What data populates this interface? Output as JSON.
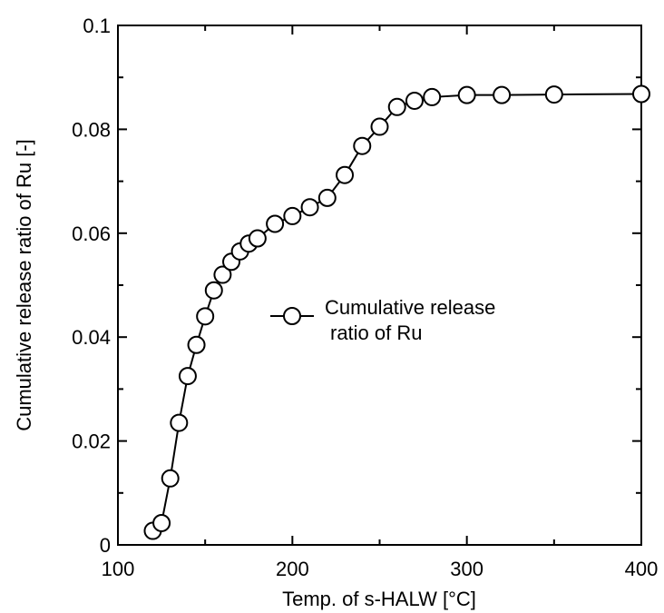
{
  "chart_data": {
    "type": "line",
    "title": "",
    "xlabel": "Temp. of s-HALW [°C]",
    "ylabel": "Cumulative release ratio of Ru [-]",
    "xlim": [
      100,
      400
    ],
    "ylim": [
      0,
      0.1
    ],
    "x_ticks": [
      "100",
      "200",
      "300",
      "400"
    ],
    "y_ticks": [
      "0",
      "0.02",
      "0.04",
      "0.06",
      "0.08",
      "0.1"
    ],
    "grid": false,
    "legend_position": "center",
    "series": [
      {
        "name": "Cumulative release ratio of Ru",
        "marker": "open-circle",
        "color": "#000000",
        "points": [
          {
            "x": 120,
            "y": 0.0027
          },
          {
            "x": 125,
            "y": 0.0042
          },
          {
            "x": 130,
            "y": 0.0128
          },
          {
            "x": 135,
            "y": 0.0235
          },
          {
            "x": 140,
            "y": 0.0325
          },
          {
            "x": 145,
            "y": 0.0385
          },
          {
            "x": 150,
            "y": 0.044
          },
          {
            "x": 155,
            "y": 0.049
          },
          {
            "x": 160,
            "y": 0.052
          },
          {
            "x": 165,
            "y": 0.0545
          },
          {
            "x": 170,
            "y": 0.0565
          },
          {
            "x": 175,
            "y": 0.058
          },
          {
            "x": 180,
            "y": 0.059
          },
          {
            "x": 190,
            "y": 0.0618
          },
          {
            "x": 200,
            "y": 0.0633
          },
          {
            "x": 210,
            "y": 0.065
          },
          {
            "x": 220,
            "y": 0.0668
          },
          {
            "x": 230,
            "y": 0.0712
          },
          {
            "x": 240,
            "y": 0.0768
          },
          {
            "x": 250,
            "y": 0.0805
          },
          {
            "x": 260,
            "y": 0.0843
          },
          {
            "x": 270,
            "y": 0.0855
          },
          {
            "x": 280,
            "y": 0.0862
          },
          {
            "x": 300,
            "y": 0.0866
          },
          {
            "x": 320,
            "y": 0.0866
          },
          {
            "x": 350,
            "y": 0.0867
          },
          {
            "x": 400,
            "y": 0.0868
          }
        ]
      }
    ]
  },
  "legend": {
    "line1": "Cumulative release",
    "line2": "ratio of Ru"
  }
}
